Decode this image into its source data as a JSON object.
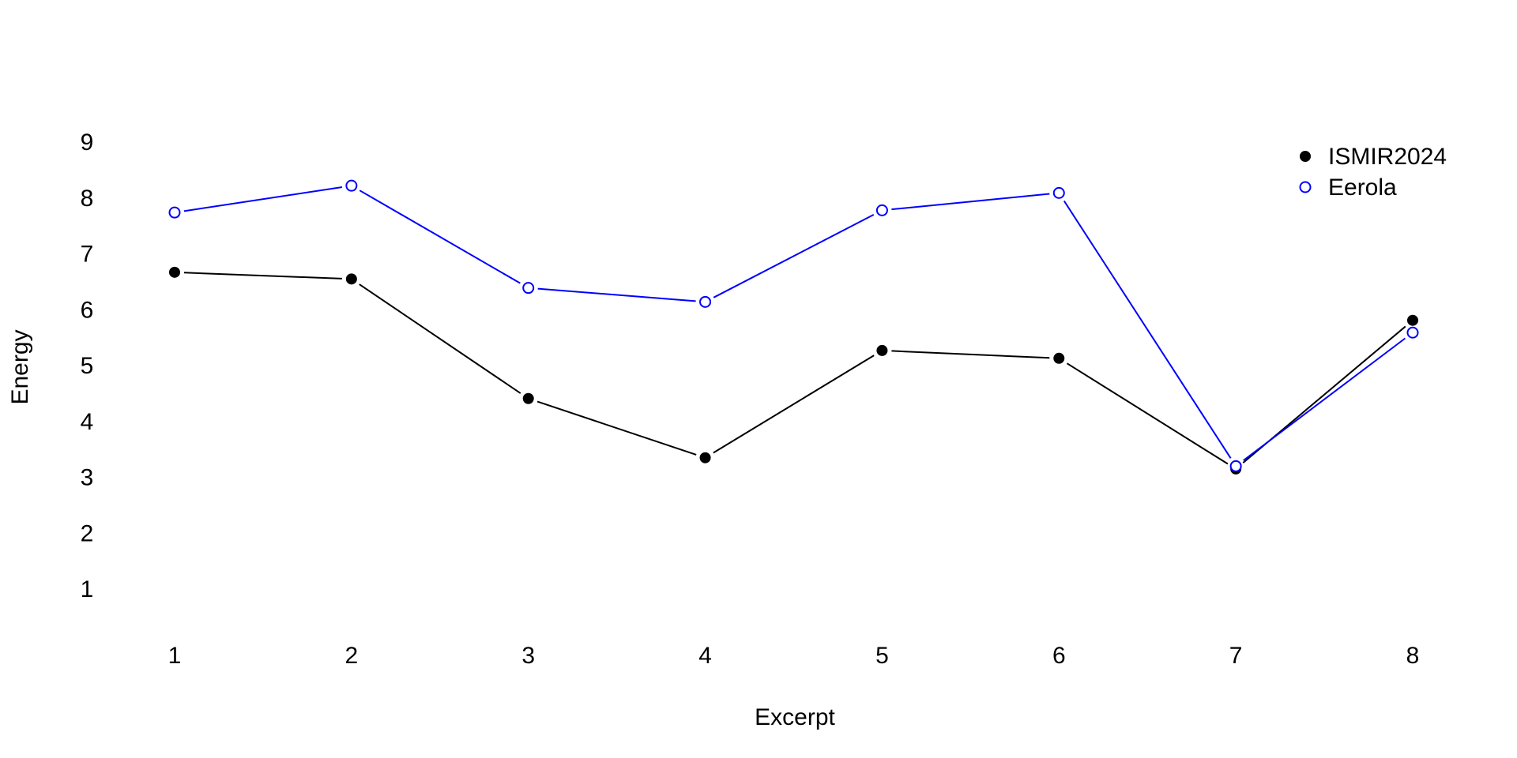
{
  "chart_data": {
    "type": "line",
    "title": "",
    "xlabel": "Excerpt",
    "ylabel": "Energy",
    "x": [
      1,
      2,
      3,
      4,
      5,
      6,
      7,
      8
    ],
    "x_ticks": [
      "1",
      "2",
      "3",
      "4",
      "5",
      "6",
      "7",
      "8"
    ],
    "y_ticks": [
      "1",
      "2",
      "3",
      "4",
      "5",
      "6",
      "7",
      "8",
      "9"
    ],
    "xlim": [
      0.3,
      8.8
    ],
    "ylim": [
      0,
      10
    ],
    "grid": false,
    "legend_position": "top-right",
    "series": [
      {
        "name": "ISMIR2024",
        "values": [
          6.67,
          6.55,
          4.41,
          3.35,
          5.27,
          5.13,
          3.15,
          5.81
        ],
        "color": "#000000",
        "marker": "filled-circle"
      },
      {
        "name": "Eerola",
        "values": [
          7.74,
          8.22,
          6.39,
          6.14,
          7.78,
          8.09,
          3.2,
          5.59
        ],
        "color": "#0000ff",
        "marker": "open-circle"
      }
    ]
  }
}
